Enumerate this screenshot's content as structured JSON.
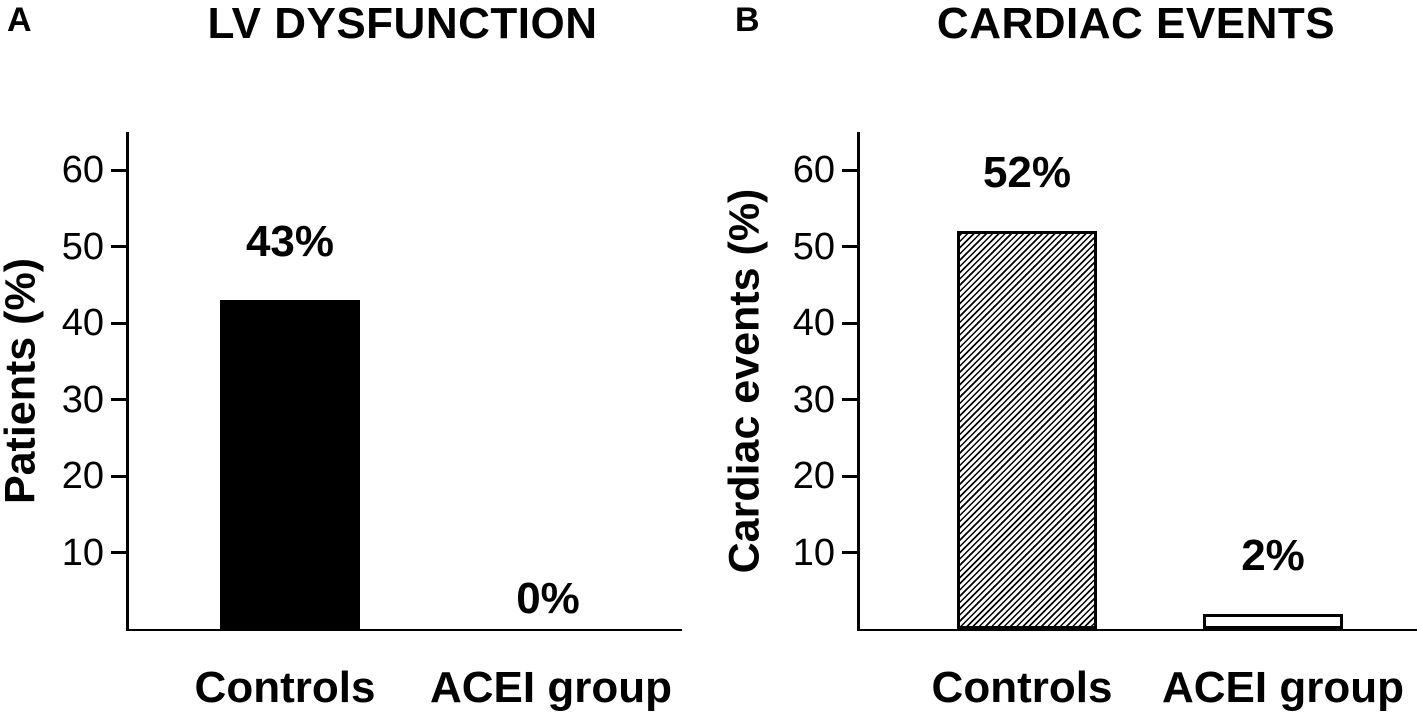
{
  "figure": {
    "background_color": "#ffffff",
    "ink_color": "#000000"
  },
  "chart_data": [
    {
      "type": "bar",
      "panel_label": "A",
      "title": "LV DYSFUNCTION",
      "ylabel": "Patients (%)",
      "xlabel": "",
      "categories": [
        "Controls",
        "ACEI group"
      ],
      "values": [
        43,
        0
      ],
      "bar_value_labels": [
        "43%",
        "0%"
      ],
      "bar_styles": [
        "solid-black",
        "none"
      ],
      "yticks": [
        10,
        20,
        30,
        40,
        50,
        60
      ],
      "ylim": [
        0,
        65
      ],
      "grid": false,
      "legend": null
    },
    {
      "type": "bar",
      "panel_label": "B",
      "title": "CARDIAC EVENTS",
      "ylabel": "Cardiac events (%)",
      "xlabel": "",
      "categories": [
        "Controls",
        "ACEI group"
      ],
      "values": [
        52,
        2
      ],
      "bar_value_labels": [
        "52%",
        "2%"
      ],
      "bar_styles": [
        "hatched",
        "outlined-white"
      ],
      "yticks": [
        10,
        20,
        30,
        40,
        50,
        60
      ],
      "ylim": [
        0,
        65
      ],
      "grid": false,
      "legend": null
    }
  ]
}
